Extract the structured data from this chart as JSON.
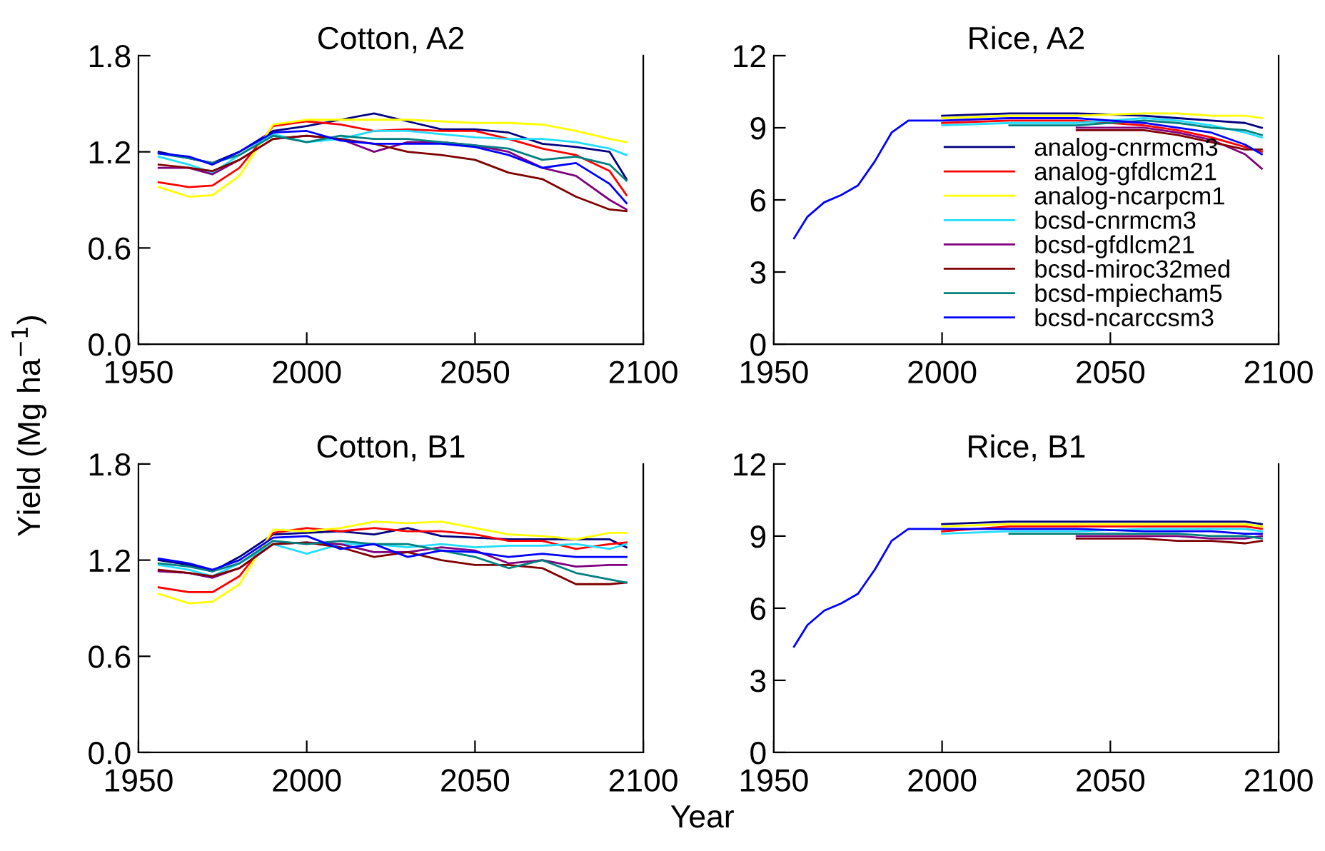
{
  "chart_data": [
    {
      "type": "line",
      "title": "Cotton, A2",
      "ylabel": "Yield (Mg ha$^{−1}$)",
      "xlim": [
        1950,
        2100
      ],
      "xticks": [
        1950,
        2000,
        2050,
        2100
      ],
      "ylim": [
        0,
        1.8
      ],
      "yticks": [
        {
          "value": 0,
          "label": "0.0"
        },
        0.6,
        1.2,
        1.8
      ],
      "grid": false,
      "legend": false,
      "x": [
        1956,
        1965,
        1972,
        1980,
        1990,
        2000,
        2010,
        2020,
        2030,
        2040,
        2050,
        2060,
        2070,
        2080,
        2090,
        2095
      ],
      "series": [
        {
          "color": "#000080",
          "values": [
            1.2,
            1.16,
            1.13,
            1.2,
            1.33,
            1.36,
            1.4,
            1.44,
            1.39,
            1.34,
            1.34,
            1.32,
            1.25,
            1.23,
            1.2,
            1.03
          ]
        },
        {
          "color": "#ff0000",
          "values": [
            1.01,
            0.98,
            0.99,
            1.1,
            1.36,
            1.39,
            1.37,
            1.33,
            1.34,
            1.33,
            1.33,
            1.28,
            1.22,
            1.18,
            1.08,
            0.93
          ]
        },
        {
          "color": "#ffff00",
          "values": [
            0.98,
            0.92,
            0.93,
            1.05,
            1.37,
            1.4,
            1.4,
            1.4,
            1.4,
            1.39,
            1.38,
            1.38,
            1.37,
            1.33,
            1.28,
            1.26
          ]
        },
        {
          "color": "#22ddff",
          "values": [
            1.17,
            1.12,
            1.07,
            1.18,
            1.31,
            1.26,
            1.28,
            1.33,
            1.33,
            1.31,
            1.29,
            1.28,
            1.28,
            1.26,
            1.22,
            1.18
          ]
        },
        {
          "color": "#800080",
          "values": [
            1.1,
            1.1,
            1.06,
            1.15,
            1.28,
            1.3,
            1.28,
            1.2,
            1.26,
            1.26,
            1.24,
            1.2,
            1.1,
            1.05,
            0.9,
            0.84
          ]
        },
        {
          "color": "#800000",
          "values": [
            1.12,
            1.1,
            1.08,
            1.15,
            1.28,
            1.3,
            1.28,
            1.25,
            1.2,
            1.18,
            1.15,
            1.07,
            1.03,
            0.92,
            0.84,
            0.83
          ]
        },
        {
          "color": "#008080",
          "values": [
            1.19,
            1.16,
            1.13,
            1.18,
            1.3,
            1.26,
            1.3,
            1.28,
            1.28,
            1.26,
            1.24,
            1.22,
            1.15,
            1.17,
            1.12,
            1.02
          ]
        },
        {
          "color": "#0000ff",
          "values": [
            1.19,
            1.17,
            1.12,
            1.2,
            1.32,
            1.33,
            1.27,
            1.25,
            1.25,
            1.25,
            1.23,
            1.18,
            1.1,
            1.13,
            1.0,
            0.88
          ]
        }
      ]
    },
    {
      "type": "line",
      "title": "Rice, A2",
      "xlim": [
        1950,
        2100
      ],
      "xticks": [
        1950,
        2000,
        2050,
        2100
      ],
      "ylim": [
        0,
        12
      ],
      "yticks": [
        0,
        3,
        6,
        9,
        12
      ],
      "grid": false,
      "legend": "right",
      "x": [
        1956,
        1960,
        1965,
        1970,
        1975,
        1980,
        1985,
        1990,
        2000,
        2020,
        2040,
        2060,
        2070,
        2080,
        2090,
        2095
      ],
      "series": [
        {
          "name": "analog-cnrmcm3",
          "color": "#000080",
          "values": [
            null,
            null,
            null,
            null,
            null,
            null,
            null,
            null,
            9.5,
            9.6,
            9.6,
            9.5,
            9.4,
            9.3,
            9.2,
            9.0
          ]
        },
        {
          "name": "analog-gfdlcm21",
          "color": "#ff0000",
          "values": [
            null,
            null,
            null,
            null,
            null,
            null,
            null,
            null,
            9.2,
            9.3,
            9.3,
            9.1,
            8.9,
            8.6,
            8.2,
            8.0
          ]
        },
        {
          "name": "analog-ncarpcm1",
          "color": "#ffff00",
          "values": [
            null,
            null,
            null,
            null,
            null,
            null,
            null,
            null,
            9.4,
            9.5,
            9.5,
            9.6,
            9.6,
            9.5,
            9.5,
            9.4
          ]
        },
        {
          "name": "bcsd-cnrmcm3",
          "color": "#22ddff",
          "values": [
            null,
            null,
            null,
            null,
            null,
            null,
            null,
            null,
            9.1,
            9.2,
            9.2,
            9.4,
            9.3,
            9.1,
            8.8,
            8.6
          ]
        },
        {
          "name": "bcsd-gfdlcm21",
          "color": "#800080",
          "values": [
            null,
            null,
            null,
            null,
            null,
            null,
            null,
            null,
            null,
            null,
            9.0,
            9.0,
            8.8,
            8.5,
            7.9,
            7.3
          ]
        },
        {
          "name": "bcsd-miroc32med",
          "color": "#800000",
          "values": [
            null,
            null,
            null,
            null,
            null,
            null,
            null,
            null,
            null,
            null,
            8.9,
            8.9,
            8.7,
            8.4,
            8.1,
            8.1
          ]
        },
        {
          "name": "bcsd-mpiecham5",
          "color": "#008080",
          "values": [
            null,
            null,
            null,
            null,
            null,
            null,
            null,
            null,
            null,
            9.1,
            9.1,
            9.3,
            9.2,
            9.0,
            8.9,
            8.7
          ]
        },
        {
          "name": "bcsd-ncarccsm3",
          "color": "#0000ff",
          "values": [
            4.4,
            5.3,
            5.9,
            6.2,
            6.6,
            7.6,
            8.8,
            9.3,
            9.3,
            9.4,
            9.4,
            9.2,
            9.0,
            8.8,
            8.3,
            7.9
          ]
        }
      ]
    },
    {
      "type": "line",
      "title": "Cotton, B1",
      "xlabel": "Year",
      "xlim": [
        1950,
        2100
      ],
      "xticks": [
        1950,
        2000,
        2050,
        2100
      ],
      "ylim": [
        0,
        1.8
      ],
      "yticks": [
        {
          "value": 0,
          "label": "0.0"
        },
        0.6,
        1.2,
        1.8
      ],
      "grid": false,
      "legend": false,
      "x": [
        1956,
        1965,
        1972,
        1980,
        1990,
        2000,
        2010,
        2020,
        2030,
        2040,
        2050,
        2060,
        2070,
        2080,
        2090,
        2095
      ],
      "series": [
        {
          "color": "#000080",
          "values": [
            1.2,
            1.17,
            1.13,
            1.22,
            1.36,
            1.37,
            1.38,
            1.36,
            1.4,
            1.35,
            1.34,
            1.33,
            1.33,
            1.33,
            1.33,
            1.28
          ]
        },
        {
          "color": "#ff0000",
          "values": [
            1.03,
            1.0,
            1.0,
            1.1,
            1.37,
            1.4,
            1.38,
            1.4,
            1.38,
            1.38,
            1.36,
            1.32,
            1.32,
            1.27,
            1.3,
            1.31
          ]
        },
        {
          "color": "#ffff00",
          "values": [
            0.99,
            0.93,
            0.94,
            1.05,
            1.39,
            1.38,
            1.4,
            1.44,
            1.43,
            1.44,
            1.4,
            1.36,
            1.35,
            1.33,
            1.37,
            1.37
          ]
        },
        {
          "color": "#22ddff",
          "values": [
            1.17,
            1.14,
            1.1,
            1.18,
            1.3,
            1.24,
            1.3,
            1.3,
            1.28,
            1.3,
            1.28,
            1.29,
            1.29,
            1.3,
            1.27,
            1.3
          ]
        },
        {
          "color": "#800080",
          "values": [
            1.13,
            1.12,
            1.09,
            1.15,
            1.3,
            1.31,
            1.3,
            1.25,
            1.25,
            1.28,
            1.26,
            1.18,
            1.2,
            1.16,
            1.17,
            1.17
          ]
        },
        {
          "color": "#800000",
          "values": [
            1.14,
            1.12,
            1.1,
            1.15,
            1.3,
            1.31,
            1.28,
            1.22,
            1.25,
            1.2,
            1.17,
            1.17,
            1.15,
            1.05,
            1.05,
            1.06
          ]
        },
        {
          "color": "#008080",
          "values": [
            1.18,
            1.16,
            1.13,
            1.18,
            1.32,
            1.3,
            1.32,
            1.3,
            1.3,
            1.26,
            1.22,
            1.15,
            1.2,
            1.12,
            1.08,
            1.06
          ]
        },
        {
          "color": "#0000ff",
          "values": [
            1.21,
            1.18,
            1.14,
            1.2,
            1.34,
            1.35,
            1.27,
            1.3,
            1.22,
            1.26,
            1.25,
            1.22,
            1.24,
            1.22,
            1.22,
            1.22
          ]
        }
      ]
    },
    {
      "type": "line",
      "title": "Rice, B1",
      "xlim": [
        1950,
        2100
      ],
      "xticks": [
        1950,
        2000,
        2050,
        2100
      ],
      "ylim": [
        0,
        12
      ],
      "yticks": [
        0,
        3,
        6,
        9,
        12
      ],
      "grid": false,
      "legend": false,
      "x": [
        1956,
        1960,
        1965,
        1970,
        1975,
        1980,
        1985,
        1990,
        2000,
        2020,
        2040,
        2060,
        2070,
        2080,
        2090,
        2095
      ],
      "series": [
        {
          "color": "#000080",
          "values": [
            null,
            null,
            null,
            null,
            null,
            null,
            null,
            null,
            9.5,
            9.6,
            9.6,
            9.6,
            9.6,
            9.6,
            9.6,
            9.5
          ]
        },
        {
          "color": "#ff0000",
          "values": [
            null,
            null,
            null,
            null,
            null,
            null,
            null,
            null,
            9.2,
            9.4,
            9.4,
            9.4,
            9.4,
            9.4,
            9.4,
            9.3
          ]
        },
        {
          "color": "#ffff00",
          "values": [
            null,
            null,
            null,
            null,
            null,
            null,
            null,
            null,
            9.4,
            9.5,
            9.5,
            9.5,
            9.5,
            9.5,
            9.5,
            9.4
          ]
        },
        {
          "color": "#22ddff",
          "values": [
            null,
            null,
            null,
            null,
            null,
            null,
            null,
            null,
            9.1,
            9.2,
            9.2,
            9.3,
            9.3,
            9.3,
            9.3,
            9.2
          ]
        },
        {
          "color": "#800080",
          "values": [
            null,
            null,
            null,
            null,
            null,
            null,
            null,
            null,
            null,
            null,
            9.0,
            9.0,
            9.0,
            8.9,
            8.9,
            9.0
          ]
        },
        {
          "color": "#800000",
          "values": [
            null,
            null,
            null,
            null,
            null,
            null,
            null,
            null,
            null,
            null,
            8.9,
            8.9,
            8.8,
            8.8,
            8.7,
            8.8
          ]
        },
        {
          "color": "#008080",
          "values": [
            null,
            null,
            null,
            null,
            null,
            null,
            null,
            null,
            null,
            9.1,
            9.1,
            9.1,
            9.1,
            9.0,
            9.0,
            8.9
          ]
        },
        {
          "color": "#0000ff",
          "values": [
            4.4,
            5.3,
            5.9,
            6.2,
            6.6,
            7.6,
            8.8,
            9.3,
            9.3,
            9.3,
            9.3,
            9.2,
            9.2,
            9.2,
            9.1,
            9.1
          ]
        }
      ]
    }
  ]
}
